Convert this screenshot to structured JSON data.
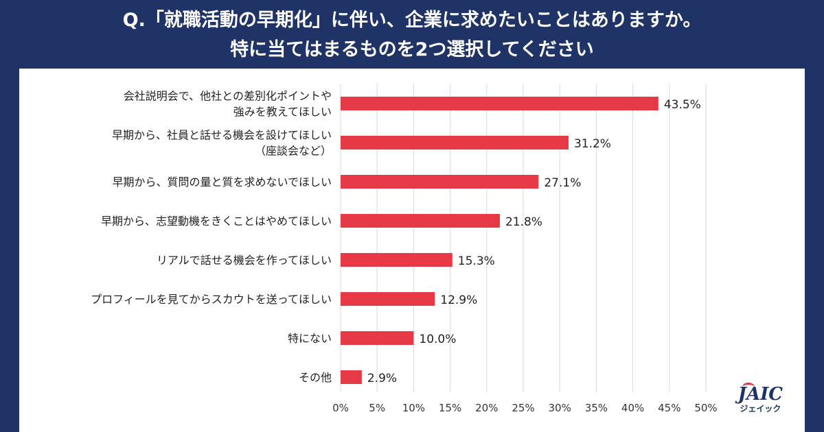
{
  "title": {
    "line1": "Q.「就職活動の早期化」に伴い、企業に求めたいことはありますか。",
    "line2": "特に当てはまるものを2つ選択してください"
  },
  "logo": {
    "mark": "JAIC",
    "sub": "ジェイック"
  },
  "colors": {
    "bar": "#e63946",
    "background": "#1f3366",
    "grid": "#d9d9d9"
  },
  "chart_data": {
    "type": "bar",
    "orientation": "horizontal",
    "categories": [
      [
        "会社説明会で、他社との差別化ポイントや",
        "強みを教えてほしい"
      ],
      [
        "早期から、社員と話せる機会を設けてほしい",
        "（座談会など）"
      ],
      [
        "早期から、質問の量と質を求めないでほしい"
      ],
      [
        "早期から、志望動機をきくことはやめてほしい"
      ],
      [
        "リアルで話せる機会を作ってほしい"
      ],
      [
        "プロフィールを見てからスカウトを送ってほしい"
      ],
      [
        "特にない"
      ],
      [
        "その他"
      ]
    ],
    "values": [
      43.5,
      31.2,
      27.1,
      21.8,
      15.3,
      12.9,
      10.0,
      2.9
    ],
    "value_labels": [
      "43.5%",
      "31.2%",
      "27.1%",
      "21.8%",
      "15.3%",
      "12.9%",
      "10.0%",
      "2.9%"
    ],
    "xlim": [
      0,
      50
    ],
    "xticks": [
      "0%",
      "5%",
      "10%",
      "15%",
      "20%",
      "25%",
      "30%",
      "35%",
      "40%",
      "45%",
      "50%"
    ],
    "grid": true
  }
}
